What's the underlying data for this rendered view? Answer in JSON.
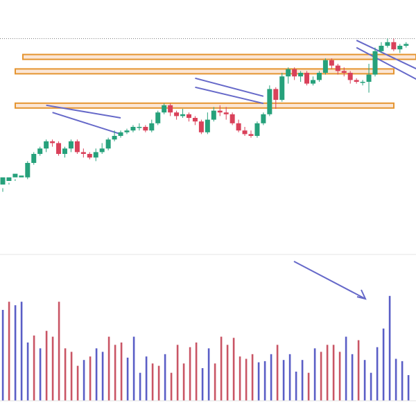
{
  "chart_data": [
    {
      "type": "candlestick",
      "title": "",
      "xlabel": "",
      "ylabel": "",
      "ylim": [
        0,
        100
      ],
      "colors": {
        "up": "#26a17b",
        "down": "#d9415a",
        "channel": "#6669c9",
        "zone_fill": "#fbe6d6",
        "zone_border": "#e59531",
        "last_line": "#777777"
      },
      "candles": [
        [
          8,
          12,
          6,
          4
        ],
        [
          10,
          12,
          9,
          8
        ],
        [
          12,
          14,
          11,
          10
        ],
        [
          12,
          13,
          11,
          11
        ],
        [
          12,
          20,
          21,
          11
        ],
        [
          20,
          25,
          26,
          19
        ],
        [
          25,
          28,
          29,
          24
        ],
        [
          28,
          32,
          33,
          26
        ],
        [
          32,
          31,
          33,
          29
        ],
        [
          31,
          25,
          32,
          24
        ],
        [
          25,
          28,
          29,
          23
        ],
        [
          28,
          32,
          33,
          26
        ],
        [
          32,
          26,
          33,
          25
        ],
        [
          26,
          25,
          28,
          23
        ],
        [
          25,
          23,
          26,
          22
        ],
        [
          23,
          26,
          28,
          21
        ],
        [
          26,
          28,
          31,
          25
        ],
        [
          28,
          33,
          34,
          27
        ],
        [
          33,
          35,
          38,
          32
        ],
        [
          35,
          37,
          38,
          34
        ],
        [
          37,
          38,
          39,
          36
        ],
        [
          38,
          40,
          41,
          37
        ],
        [
          40,
          40,
          42,
          38
        ],
        [
          40,
          38,
          41,
          37
        ],
        [
          38,
          42,
          44,
          37
        ],
        [
          42,
          48,
          49,
          41
        ],
        [
          48,
          52,
          53,
          47
        ],
        [
          52,
          48,
          53,
          46
        ],
        [
          48,
          46,
          49,
          44
        ],
        [
          46,
          47,
          50,
          45
        ],
        [
          47,
          45,
          48,
          43
        ],
        [
          45,
          43,
          46,
          41
        ],
        [
          43,
          37,
          44,
          36
        ],
        [
          37,
          44,
          48,
          36
        ],
        [
          44,
          49,
          51,
          43
        ],
        [
          49,
          48,
          52,
          46
        ],
        [
          48,
          47,
          51,
          44
        ],
        [
          47,
          42,
          48,
          41
        ],
        [
          42,
          38,
          44,
          37
        ],
        [
          38,
          36,
          40,
          35
        ],
        [
          36,
          35,
          38,
          34
        ],
        [
          35,
          42,
          43,
          34
        ],
        [
          42,
          47,
          48,
          41
        ],
        [
          47,
          61,
          63,
          46
        ],
        [
          61,
          55,
          62,
          50
        ],
        [
          55,
          68,
          70,
          54
        ],
        [
          68,
          72,
          73,
          64
        ],
        [
          72,
          68,
          73,
          66
        ],
        [
          68,
          70,
          71,
          65
        ],
        [
          70,
          64,
          71,
          63
        ],
        [
          64,
          66,
          68,
          63
        ],
        [
          66,
          70,
          71,
          65
        ],
        [
          70,
          77,
          78,
          69
        ],
        [
          77,
          74,
          78,
          72
        ],
        [
          74,
          71,
          75,
          69
        ],
        [
          71,
          70,
          73,
          68
        ],
        [
          70,
          66,
          71,
          64
        ],
        [
          66,
          65,
          67,
          64
        ],
        [
          65,
          65,
          66,
          63
        ],
        [
          65,
          69,
          75,
          59
        ],
        [
          69,
          82,
          84,
          68
        ],
        [
          82,
          85,
          87,
          81
        ],
        [
          85,
          87,
          89,
          84
        ],
        [
          87,
          83,
          89,
          82
        ],
        [
          83,
          85,
          86,
          81
        ],
        [
          85,
          86,
          87,
          84
        ]
      ],
      "horizontal_zones": [
        52,
        71,
        79
      ],
      "last_price": 89,
      "channels": [
        {
          "upper": [
            [
              7,
              52
            ],
            [
              19,
              45
            ]
          ],
          "lower": [
            [
              8,
              48
            ],
            [
              19,
              36
            ]
          ]
        },
        {
          "upper": [
            [
              31,
              67
            ],
            [
              42,
              57
            ]
          ],
          "lower": [
            [
              31,
              62
            ],
            [
              42,
              53
            ]
          ]
        },
        {
          "upper": [
            [
              57,
              88
            ],
            [
              68,
              70
            ]
          ],
          "lower": [
            [
              57,
              84
            ],
            [
              68,
              64
            ]
          ]
        }
      ]
    },
    {
      "type": "bar",
      "title": "",
      "xlabel": "",
      "ylabel": "",
      "ylim": [
        0,
        100
      ],
      "up_color": "#5a5ec6",
      "down_color": "#c95565",
      "values": [
        78,
        85,
        82,
        85,
        50,
        56,
        45,
        60,
        55,
        85,
        45,
        42,
        30,
        35,
        38,
        45,
        42,
        55,
        48,
        50,
        37,
        55,
        24,
        38,
        32,
        30,
        40,
        24,
        48,
        32,
        46,
        50,
        28,
        45,
        32,
        55,
        48,
        54,
        38,
        36,
        40,
        33,
        34,
        40,
        48,
        35,
        40,
        25,
        35,
        24,
        45,
        42,
        48,
        48,
        42,
        55,
        40,
        52,
        35,
        24,
        46,
        62,
        90,
        36,
        34,
        22
      ],
      "up_flags": [
        1,
        0,
        1,
        1,
        1,
        0,
        1,
        0,
        0,
        0,
        0,
        0,
        0,
        1,
        0,
        1,
        1,
        0,
        0,
        0,
        1,
        1,
        1,
        1,
        0,
        0,
        1,
        0,
        0,
        0,
        0,
        0,
        1,
        1,
        0,
        0,
        0,
        0,
        0,
        0,
        0,
        1,
        1,
        1,
        0,
        1,
        1,
        1,
        1,
        0,
        1,
        0,
        0,
        0,
        0,
        1,
        1,
        0,
        1,
        1,
        1,
        1,
        1,
        1,
        1,
        1
      ],
      "arrow": {
        "from": [
          48,
          100
        ],
        "to": [
          60,
          80
        ]
      }
    }
  ]
}
